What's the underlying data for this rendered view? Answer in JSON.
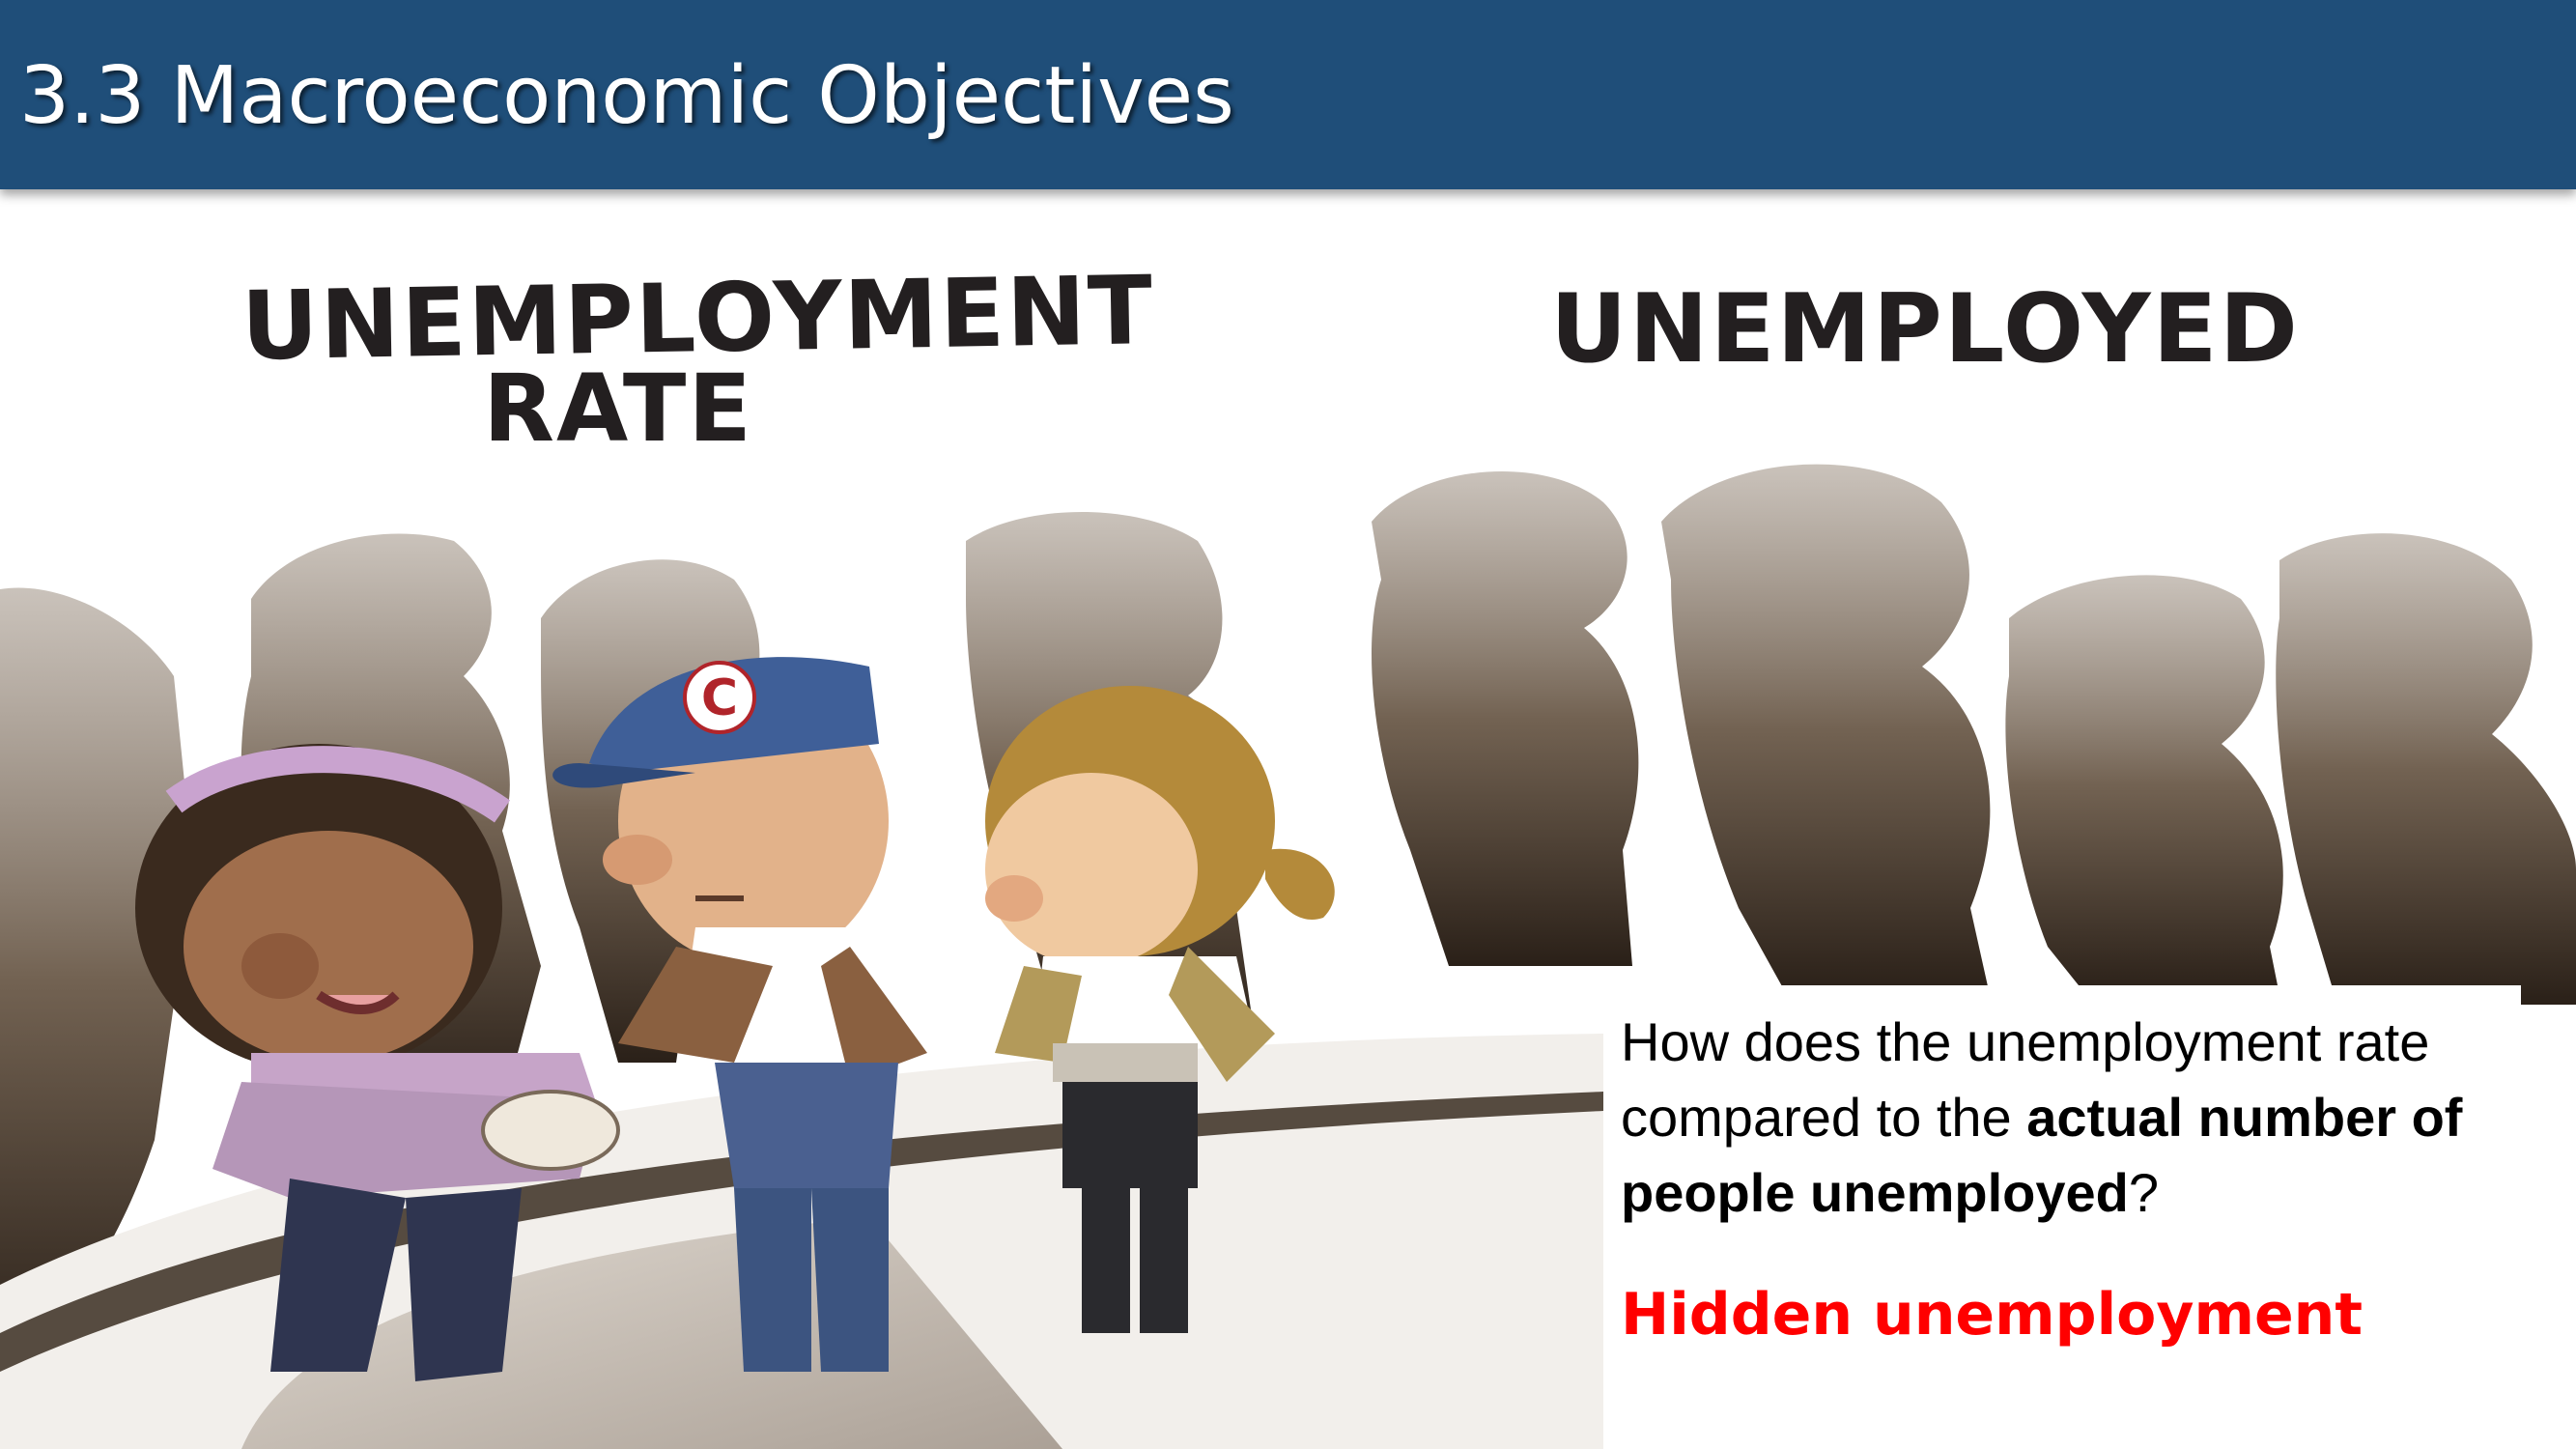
{
  "slide": {
    "title": "3.3 Macroeconomic Objectives"
  },
  "cartoon": {
    "label_left_line1": "UNEMPLOYMENT",
    "label_left_line2": "RATE",
    "label_right": "UNEMPLOYED",
    "cap_letter": "C"
  },
  "question": {
    "part1": "How does the unemployment rate compared to the ",
    "bold": "actual number of people unemployed",
    "part2": "?"
  },
  "answer": "Hidden unemployment",
  "colors": {
    "title_bar": "#1f4e79",
    "answer": "#ff0000",
    "shadow": "#4a3b2c"
  }
}
